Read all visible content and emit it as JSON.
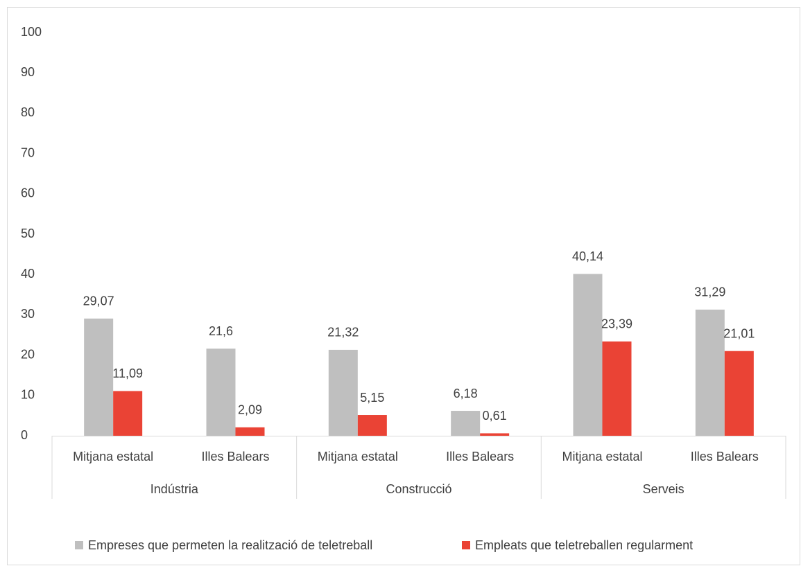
{
  "chart_data": {
    "type": "bar",
    "categories": [
      "Mitjana estatal",
      "Illes Balears",
      "Mitjana estatal",
      "Illes Balears",
      "Mitjana estatal",
      "Illes Balears"
    ],
    "groups": [
      "Indústria",
      "Construcció",
      "Serveis"
    ],
    "series": [
      {
        "name": "Empreses que permeten la realització de teletreball",
        "color": "#bfbfbf",
        "values": [
          29.07,
          21.6,
          21.32,
          6.18,
          40.14,
          31.29
        ],
        "value_labels": [
          "29,07",
          "21,6",
          "21,32",
          "6,18",
          "40,14",
          "31,29"
        ]
      },
      {
        "name": "Empleats que teletreballen regularment",
        "color": "#ea4335",
        "values": [
          11.09,
          2.09,
          5.15,
          0.61,
          23.39,
          21.01
        ],
        "value_labels": [
          "11,09",
          "2,09",
          "5,15",
          "0,61",
          "23,39",
          "21,01"
        ]
      }
    ],
    "ylim": [
      0,
      100
    ],
    "yticks": [
      0,
      10,
      20,
      30,
      40,
      50,
      60,
      70,
      80,
      90,
      100
    ],
    "grid": false,
    "legend": "bottom"
  }
}
